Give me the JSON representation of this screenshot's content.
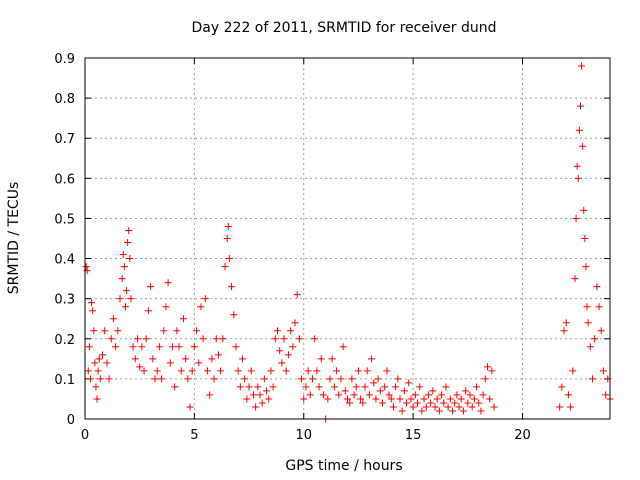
{
  "chart_data": {
    "type": "scatter",
    "title": "Day 222 of 2011, SRMTID for receiver dund",
    "xlabel": "GPS time / hours",
    "ylabel": "SRMTID / TECUs",
    "xlim": [
      0,
      24
    ],
    "ylim": [
      0,
      0.9
    ],
    "xticks": [
      0,
      5,
      10,
      15,
      20
    ],
    "xtick_labels": [
      "0",
      "5",
      "10",
      "15",
      "20"
    ],
    "yticks": [
      0,
      0.1,
      0.2,
      0.3,
      0.4,
      0.5,
      0.6,
      0.7,
      0.8,
      0.9
    ],
    "ytick_labels": [
      "0",
      "0.1",
      "0.2",
      "0.3",
      "0.4",
      "0.5",
      "0.6",
      "0.7",
      "0.8",
      "0.9"
    ],
    "grid": true,
    "marker": "plus",
    "color": "#ff0000",
    "series": [
      {
        "name": "SRMTID",
        "points": [
          [
            0.05,
            0.38
          ],
          [
            0.1,
            0.37
          ],
          [
            0.15,
            0.12
          ],
          [
            0.2,
            0.18
          ],
          [
            0.25,
            0.1
          ],
          [
            0.3,
            0.29
          ],
          [
            0.35,
            0.27
          ],
          [
            0.4,
            0.22
          ],
          [
            0.45,
            0.14
          ],
          [
            0.5,
            0.08
          ],
          [
            0.55,
            0.05
          ],
          [
            0.6,
            0.12
          ],
          [
            0.65,
            0.15
          ],
          [
            0.7,
            0.1
          ],
          [
            0.8,
            0.16
          ],
          [
            0.9,
            0.22
          ],
          [
            1.0,
            0.14
          ],
          [
            1.1,
            0.1
          ],
          [
            1.2,
            0.2
          ],
          [
            1.3,
            0.25
          ],
          [
            1.4,
            0.18
          ],
          [
            1.5,
            0.22
          ],
          [
            1.6,
            0.3
          ],
          [
            1.7,
            0.35
          ],
          [
            1.75,
            0.41
          ],
          [
            1.8,
            0.38
          ],
          [
            1.85,
            0.28
          ],
          [
            1.9,
            0.32
          ],
          [
            1.95,
            0.44
          ],
          [
            2.0,
            0.47
          ],
          [
            2.05,
            0.4
          ],
          [
            2.1,
            0.3
          ],
          [
            2.2,
            0.18
          ],
          [
            2.3,
            0.15
          ],
          [
            2.4,
            0.2
          ],
          [
            2.5,
            0.13
          ],
          [
            2.6,
            0.18
          ],
          [
            2.7,
            0.12
          ],
          [
            2.8,
            0.2
          ],
          [
            2.9,
            0.27
          ],
          [
            3.0,
            0.33
          ],
          [
            3.1,
            0.15
          ],
          [
            3.2,
            0.1
          ],
          [
            3.3,
            0.12
          ],
          [
            3.4,
            0.18
          ],
          [
            3.5,
            0.1
          ],
          [
            3.6,
            0.22
          ],
          [
            3.7,
            0.28
          ],
          [
            3.8,
            0.34
          ],
          [
            3.9,
            0.14
          ],
          [
            4.0,
            0.18
          ],
          [
            4.1,
            0.08
          ],
          [
            4.2,
            0.22
          ],
          [
            4.3,
            0.18
          ],
          [
            4.4,
            0.12
          ],
          [
            4.5,
            0.25
          ],
          [
            4.6,
            0.15
          ],
          [
            4.7,
            0.1
          ],
          [
            4.8,
            0.03
          ],
          [
            4.9,
            0.12
          ],
          [
            5.0,
            0.18
          ],
          [
            5.1,
            0.22
          ],
          [
            5.2,
            0.14
          ],
          [
            5.3,
            0.28
          ],
          [
            5.4,
            0.2
          ],
          [
            5.5,
            0.3
          ],
          [
            5.6,
            0.12
          ],
          [
            5.7,
            0.06
          ],
          [
            5.8,
            0.15
          ],
          [
            5.9,
            0.1
          ],
          [
            6.0,
            0.2
          ],
          [
            6.1,
            0.16
          ],
          [
            6.2,
            0.12
          ],
          [
            6.3,
            0.2
          ],
          [
            6.4,
            0.38
          ],
          [
            6.5,
            0.45
          ],
          [
            6.55,
            0.48
          ],
          [
            6.6,
            0.4
          ],
          [
            6.7,
            0.33
          ],
          [
            6.8,
            0.26
          ],
          [
            6.9,
            0.18
          ],
          [
            7.0,
            0.12
          ],
          [
            7.1,
            0.08
          ],
          [
            7.2,
            0.15
          ],
          [
            7.3,
            0.1
          ],
          [
            7.4,
            0.05
          ],
          [
            7.5,
            0.08
          ],
          [
            7.6,
            0.12
          ],
          [
            7.7,
            0.06
          ],
          [
            7.8,
            0.03
          ],
          [
            7.9,
            0.08
          ],
          [
            8.0,
            0.06
          ],
          [
            8.1,
            0.04
          ],
          [
            8.2,
            0.1
          ],
          [
            8.3,
            0.07
          ],
          [
            8.4,
            0.05
          ],
          [
            8.5,
            0.12
          ],
          [
            8.6,
            0.08
          ],
          [
            8.7,
            0.2
          ],
          [
            8.8,
            0.22
          ],
          [
            8.9,
            0.17
          ],
          [
            9.0,
            0.14
          ],
          [
            9.1,
            0.2
          ],
          [
            9.2,
            0.12
          ],
          [
            9.3,
            0.16
          ],
          [
            9.4,
            0.22
          ],
          [
            9.5,
            0.18
          ],
          [
            9.6,
            0.24
          ],
          [
            9.7,
            0.31
          ],
          [
            9.8,
            0.2
          ],
          [
            9.9,
            0.1
          ],
          [
            10.0,
            0.05
          ],
          [
            10.1,
            0.08
          ],
          [
            10.2,
            0.12
          ],
          [
            10.3,
            0.06
          ],
          [
            10.4,
            0.1
          ],
          [
            10.5,
            0.2
          ],
          [
            10.6,
            0.12
          ],
          [
            10.7,
            0.08
          ],
          [
            10.8,
            0.15
          ],
          [
            10.9,
            0.06
          ],
          [
            11.0,
            0.0
          ],
          [
            11.1,
            0.05
          ],
          [
            11.2,
            0.1
          ],
          [
            11.3,
            0.15
          ],
          [
            11.4,
            0.08
          ],
          [
            11.5,
            0.12
          ],
          [
            11.6,
            0.06
          ],
          [
            11.7,
            0.1
          ],
          [
            11.8,
            0.18
          ],
          [
            11.9,
            0.07
          ],
          [
            12.0,
            0.05
          ],
          [
            12.1,
            0.04
          ],
          [
            12.2,
            0.1
          ],
          [
            12.3,
            0.06
          ],
          [
            12.4,
            0.08
          ],
          [
            12.5,
            0.12
          ],
          [
            12.6,
            0.05
          ],
          [
            12.7,
            0.04
          ],
          [
            12.8,
            0.08
          ],
          [
            12.9,
            0.12
          ],
          [
            13.0,
            0.06
          ],
          [
            13.1,
            0.15
          ],
          [
            13.2,
            0.09
          ],
          [
            13.3,
            0.05
          ],
          [
            13.4,
            0.1
          ],
          [
            13.5,
            0.07
          ],
          [
            13.6,
            0.04
          ],
          [
            13.7,
            0.08
          ],
          [
            13.8,
            0.12
          ],
          [
            13.9,
            0.06
          ],
          [
            14.0,
            0.05
          ],
          [
            14.1,
            0.03
          ],
          [
            14.2,
            0.08
          ],
          [
            14.3,
            0.1
          ],
          [
            14.4,
            0.05
          ],
          [
            14.5,
            0.02
          ],
          [
            14.6,
            0.07
          ],
          [
            14.7,
            0.04
          ],
          [
            14.8,
            0.09
          ],
          [
            14.9,
            0.05
          ],
          [
            15.0,
            0.03
          ],
          [
            15.1,
            0.06
          ],
          [
            15.2,
            0.04
          ],
          [
            15.3,
            0.08
          ],
          [
            15.4,
            0.02
          ],
          [
            15.5,
            0.05
          ],
          [
            15.6,
            0.03
          ],
          [
            15.7,
            0.06
          ],
          [
            15.8,
            0.04
          ],
          [
            15.9,
            0.07
          ],
          [
            16.0,
            0.03
          ],
          [
            16.1,
            0.05
          ],
          [
            16.2,
            0.02
          ],
          [
            16.3,
            0.06
          ],
          [
            16.4,
            0.04
          ],
          [
            16.5,
            0.08
          ],
          [
            16.6,
            0.03
          ],
          [
            16.7,
            0.05
          ],
          [
            16.8,
            0.02
          ],
          [
            16.9,
            0.04
          ],
          [
            17.0,
            0.06
          ],
          [
            17.1,
            0.03
          ],
          [
            17.2,
            0.05
          ],
          [
            17.3,
            0.02
          ],
          [
            17.4,
            0.07
          ],
          [
            17.5,
            0.04
          ],
          [
            17.6,
            0.06
          ],
          [
            17.7,
            0.03
          ],
          [
            17.8,
            0.05
          ],
          [
            17.9,
            0.08
          ],
          [
            18.0,
            0.04
          ],
          [
            18.1,
            0.02
          ],
          [
            18.2,
            0.06
          ],
          [
            18.3,
            0.1
          ],
          [
            18.4,
            0.13
          ],
          [
            18.5,
            0.05
          ],
          [
            18.6,
            0.12
          ],
          [
            18.7,
            0.03
          ],
          [
            21.7,
            0.03
          ],
          [
            21.8,
            0.08
          ],
          [
            21.9,
            0.22
          ],
          [
            22.0,
            0.24
          ],
          [
            22.1,
            0.06
          ],
          [
            22.2,
            0.03
          ],
          [
            22.3,
            0.12
          ],
          [
            22.4,
            0.35
          ],
          [
            22.45,
            0.5
          ],
          [
            22.5,
            0.63
          ],
          [
            22.55,
            0.6
          ],
          [
            22.6,
            0.72
          ],
          [
            22.65,
            0.78
          ],
          [
            22.7,
            0.88
          ],
          [
            22.75,
            0.68
          ],
          [
            22.8,
            0.52
          ],
          [
            22.85,
            0.45
          ],
          [
            22.9,
            0.38
          ],
          [
            22.95,
            0.28
          ],
          [
            23.0,
            0.24
          ],
          [
            23.1,
            0.18
          ],
          [
            23.2,
            0.1
          ],
          [
            23.3,
            0.2
          ],
          [
            23.4,
            0.33
          ],
          [
            23.5,
            0.28
          ],
          [
            23.6,
            0.22
          ],
          [
            23.7,
            0.12
          ],
          [
            23.8,
            0.06
          ],
          [
            23.9,
            0.1
          ],
          [
            24.0,
            0.05
          ]
        ]
      }
    ]
  }
}
